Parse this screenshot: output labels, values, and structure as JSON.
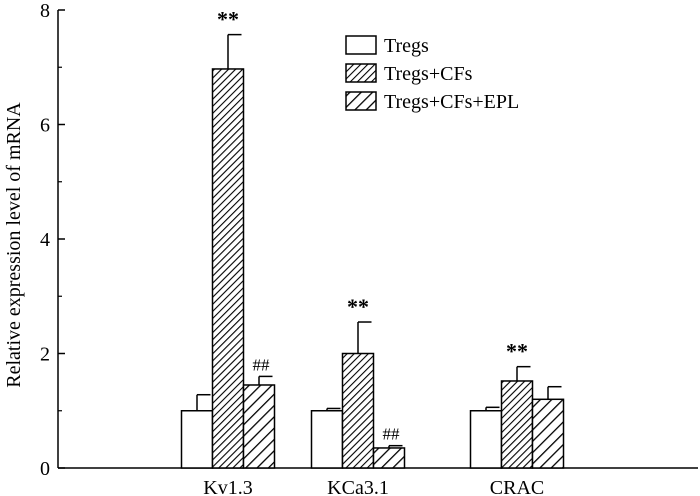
{
  "chart_data": {
    "type": "bar",
    "ylabel": "Relative expression level of mRNA",
    "xlabel": "",
    "ylim": [
      0,
      8
    ],
    "yticks": [
      "0",
      "2",
      "4",
      "6",
      "8"
    ],
    "grid": false,
    "legend_position": "top-right",
    "categories": [
      "Kv1.3",
      "KCa3.1",
      "CRAC"
    ],
    "series": [
      {
        "name": "Tregs",
        "pattern": "none",
        "values": [
          1.0,
          1.0,
          1.0
        ],
        "errors": [
          0.28,
          0.04,
          0.06
        ],
        "annotations": [
          "",
          "",
          ""
        ]
      },
      {
        "name": "Tregs+CFs",
        "pattern": "dense-diagonal",
        "values": [
          6.97,
          2.0,
          1.52
        ],
        "errors": [
          0.6,
          0.55,
          0.25
        ],
        "annotations": [
          "**",
          "**",
          "**"
        ]
      },
      {
        "name": "Tregs+CFs+EPL",
        "pattern": "sparse-diagonal",
        "values": [
          1.45,
          0.35,
          1.2
        ],
        "errors": [
          0.15,
          0.04,
          0.22
        ],
        "annotations": [
          "##",
          "##",
          ""
        ]
      }
    ],
    "colors": {
      "bar_fill": "#ffffff",
      "stroke": "#000000"
    }
  }
}
